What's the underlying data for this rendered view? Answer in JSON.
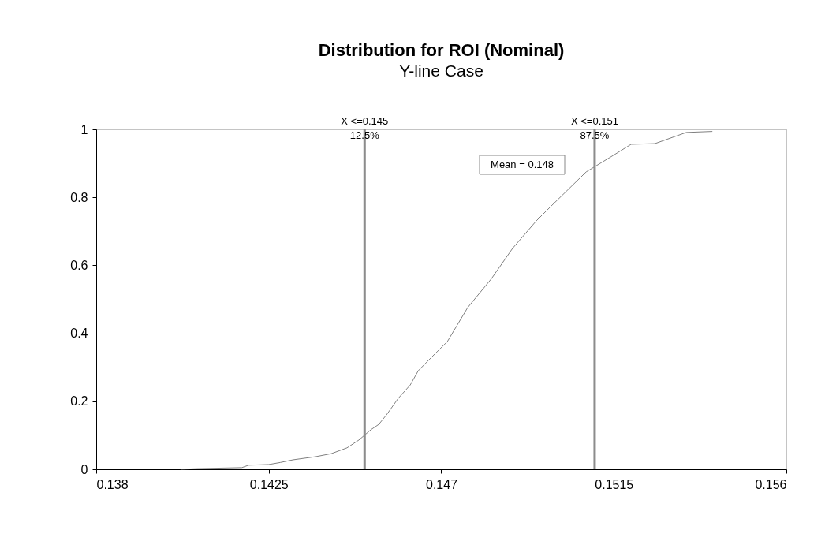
{
  "chart_data": {
    "type": "line",
    "title": "Distribution for ROI (Nominal)",
    "subtitle": "Y-line Case",
    "x": [
      0.1402,
      0.14063,
      0.1418,
      0.14197,
      0.1425,
      0.1428,
      0.14314,
      0.14372,
      0.14413,
      0.14454,
      0.14485,
      0.14516,
      0.14537,
      0.14557,
      0.14588,
      0.14619,
      0.1464,
      0.14674,
      0.14716,
      0.14769,
      0.14831,
      0.14886,
      0.14948,
      0.14989,
      0.15078,
      0.15148,
      0.15195,
      0.15257,
      0.15339,
      0.15407
    ],
    "series": [
      {
        "color": "#808080",
        "values": [
          0,
          0.002,
          0.005,
          0.012,
          0.014,
          0.02,
          0.028,
          0.037,
          0.046,
          0.063,
          0.086,
          0.116,
          0.132,
          0.16,
          0.209,
          0.248,
          0.29,
          0.329,
          0.376,
          0.476,
          0.561,
          0.65,
          0.731,
          0.777,
          0.875,
          0.923,
          0.956,
          0.958,
          0.991,
          0.994
        ]
      }
    ],
    "xlim": [
      0.138,
      0.156
    ],
    "xticks": [
      0.138,
      0.1425,
      0.147,
      0.1515,
      0.156
    ],
    "ylim": [
      0,
      1
    ],
    "yticks": [
      0,
      0.2,
      0.4,
      0.6,
      0.8,
      1
    ],
    "grid": false,
    "marker": "none",
    "line_style": "solid",
    "ref_lines": [
      {
        "axis": "x",
        "value": 0.145,
        "label": "X <=0.145\n12.5%",
        "color": "#8c8c8c"
      },
      {
        "axis": "x",
        "value": 0.151,
        "label": "X <=0.151\n87.5%",
        "color": "#8c8c8c"
      }
    ],
    "annotations": [
      "Mean = 0.148"
    ]
  }
}
